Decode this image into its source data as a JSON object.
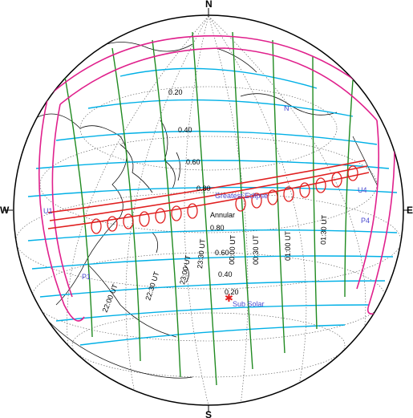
{
  "compass": {
    "north": "N",
    "south": "S",
    "west": "W",
    "east": "E"
  },
  "magnitude_labels": [
    "0.20",
    "0.40",
    "0.60",
    "0.80",
    "0.80",
    "0.60",
    "0.40",
    "0.20"
  ],
  "ut_labels": [
    "22:00 UT",
    "22:30 UT",
    "23:00 UT",
    "23:30 UT",
    "00:00 UT",
    "00:30 UT",
    "01:00 UT",
    "01:30 UT"
  ],
  "contact_labels": {
    "p1": "P1",
    "p4": "P4",
    "u1": "U1",
    "u4": "U4",
    "n_limit": "N"
  },
  "feature_labels": {
    "greatest_eclipse": "Greatest Eclipse",
    "annular": "Annular",
    "sub_solar": "Sub Solar"
  },
  "colors": {
    "globe_fill": "#ffffff",
    "night_shade": "#b4b4b4",
    "coast": "#111111",
    "graticule": "#555555",
    "magnitude": "#00b0e6",
    "ut_lines": "#208a20",
    "limits": "#e0208c",
    "path": "#e02020",
    "sub_solar": "#e02020",
    "label_blue": "#4a4ad0"
  }
}
